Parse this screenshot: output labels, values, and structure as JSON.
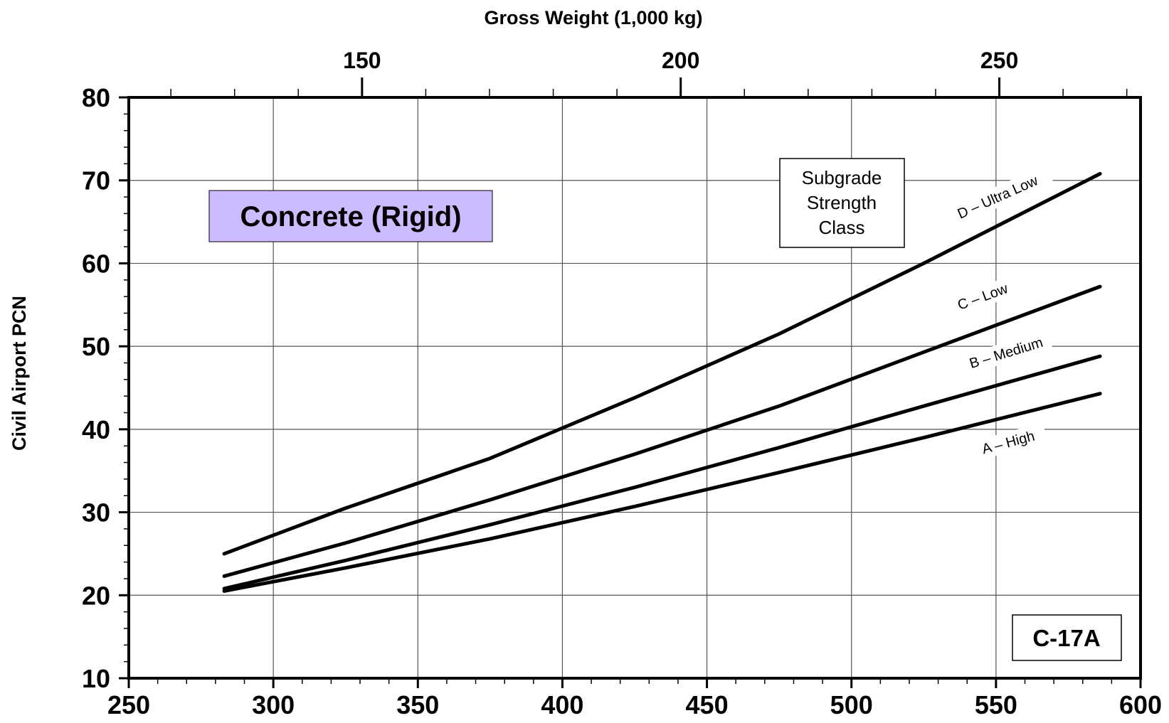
{
  "chart_data": {
    "type": "line",
    "title": "",
    "xlabel": "",
    "ylabel": "Civil Airport PCN",
    "x2label": "Gross Weight (1,000 kg)",
    "xlim": [
      250,
      600
    ],
    "ylim": [
      10,
      80
    ],
    "x_ticks": [
      "250",
      "300",
      "350",
      "400",
      "450",
      "500",
      "550",
      "600"
    ],
    "y_ticks": [
      "10",
      "20",
      "30",
      "40",
      "50",
      "60",
      "70",
      "80"
    ],
    "x2_ticks": [
      "150",
      "200",
      "250"
    ],
    "grid": true,
    "series": [
      {
        "name": "D – Ultra Low",
        "x": [
          283,
          325,
          375,
          425,
          475,
          525,
          586
        ],
        "y": [
          25.0,
          30.5,
          36.5,
          43.8,
          51.5,
          60.0,
          70.8
        ]
      },
      {
        "name": "C – Low",
        "x": [
          283,
          325,
          375,
          425,
          475,
          525,
          586
        ],
        "y": [
          22.3,
          26.3,
          31.5,
          37.0,
          42.8,
          49.3,
          57.2
        ]
      },
      {
        "name": "B – Medium",
        "x": [
          283,
          325,
          375,
          425,
          475,
          525,
          586
        ],
        "y": [
          20.8,
          24.2,
          28.5,
          33.0,
          37.8,
          42.8,
          48.8
        ]
      },
      {
        "name": "A – High",
        "x": [
          283,
          325,
          375,
          425,
          475,
          525,
          586
        ],
        "y": [
          20.5,
          23.3,
          26.8,
          30.7,
          34.8,
          39.0,
          44.3
        ]
      }
    ],
    "annotations": {
      "surface_label": "Concrete (Rigid)",
      "surface_color": "#ccbbff",
      "legend_box": [
        "Subgrade",
        "Strength",
        "Class"
      ],
      "aircraft": "C-17A"
    }
  }
}
